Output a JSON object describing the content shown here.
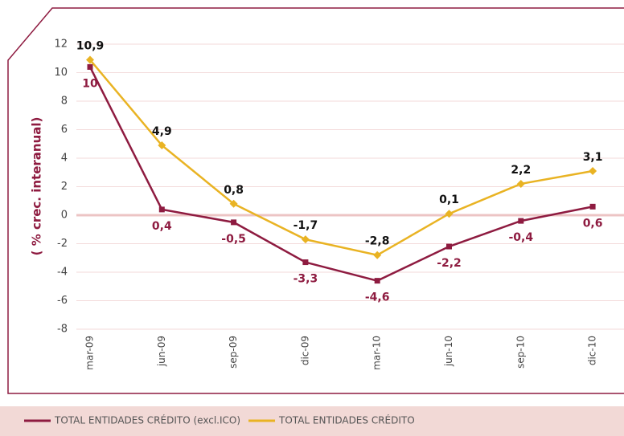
{
  "chart_data": {
    "type": "line",
    "y_label": "( % crec. interanual)",
    "categories": [
      "mar-09",
      "jun-09",
      "sep-09",
      "dic-09",
      "mar-10",
      "jun-10",
      "sep-10",
      "dic-10"
    ],
    "series": [
      {
        "name": "TOTAL ENTIDADES CRÉDITO (excl.ICO)",
        "color": "#8e1b40",
        "values": [
          10.4,
          0.4,
          -0.5,
          -3.3,
          -4.6,
          -2.2,
          -0.4,
          0.6
        ],
        "value_labels": [
          "10",
          "0,4",
          "-0,5",
          "-3,3",
          "-4,6",
          "-2,2",
          "-0,4",
          "0,6"
        ]
      },
      {
        "name": "TOTAL ENTIDADES CRÉDITO",
        "color": "#e9b323",
        "values": [
          10.9,
          4.9,
          0.8,
          -1.7,
          -2.8,
          0.1,
          2.2,
          3.1
        ],
        "value_labels": [
          "10,9",
          "4,9",
          "0,8",
          "-1,7",
          "-2,8",
          "0,1",
          "2,2",
          "3,1"
        ]
      }
    ],
    "ylim": [
      -8,
      12
    ],
    "yticks": [
      -8,
      -6,
      -4,
      -2,
      0,
      2,
      4,
      6,
      8,
      10,
      12
    ],
    "grid": true,
    "legend": "bottom"
  }
}
